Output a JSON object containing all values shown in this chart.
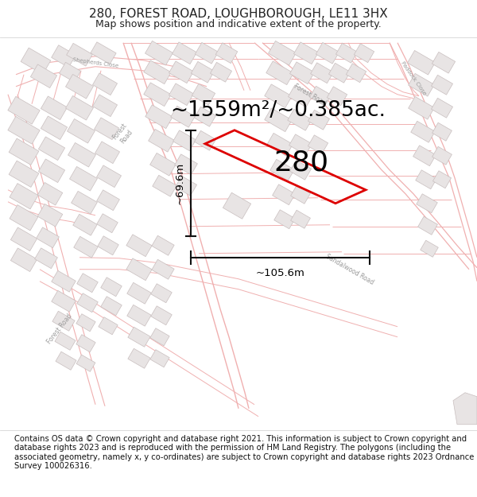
{
  "title": "280, FOREST ROAD, LOUGHBOROUGH, LE11 3HX",
  "subtitle": "Map shows position and indicative extent of the property.",
  "area_label": "~1559m²/~0.385ac.",
  "property_label": "280",
  "dim_width": "~105.6m",
  "dim_height": "~69.6m",
  "footer": "Contains OS data © Crown copyright and database right 2021. This information is subject to Crown copyright and database rights 2023 and is reproduced with the permission of HM Land Registry. The polygons (including the associated geometry, namely x, y co-ordinates) are subject to Crown copyright and database rights 2023 Ordnance Survey 100026316.",
  "title_fontsize": 11,
  "subtitle_fontsize": 9,
  "area_fontsize": 19,
  "property_label_fontsize": 26,
  "footer_fontsize": 7.2,
  "map_bg": "#ffffff",
  "road_color": "#f0b0b0",
  "building_fill": "#e8e4e4",
  "building_outline": "#c8bebe",
  "property_outline": "#dd0000",
  "dim_line_color": "#111111",
  "title_color": "#222222",
  "footer_color": "#111111",
  "road_lw": 0.7,
  "bld_lw": 0.5
}
